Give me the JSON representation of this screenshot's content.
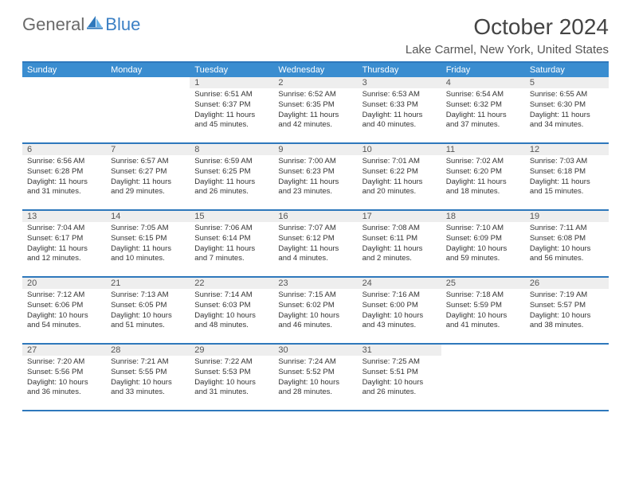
{
  "logo": {
    "text_general": "General",
    "text_blue": "Blue"
  },
  "header": {
    "month_title": "October 2024",
    "location": "Lake Carmel, New York, United States"
  },
  "colors": {
    "header_bg": "#3a8dd0",
    "header_text": "#ffffff",
    "border": "#2e78bc",
    "daynum_bg": "#eeeeee",
    "body_text": "#333333"
  },
  "day_names": [
    "Sunday",
    "Monday",
    "Tuesday",
    "Wednesday",
    "Thursday",
    "Friday",
    "Saturday"
  ],
  "weeks": [
    [
      {
        "empty": true
      },
      {
        "empty": true
      },
      {
        "daynum": "1",
        "sunrise": "Sunrise: 6:51 AM",
        "sunset": "Sunset: 6:37 PM",
        "daylight": "Daylight: 11 hours and 45 minutes."
      },
      {
        "daynum": "2",
        "sunrise": "Sunrise: 6:52 AM",
        "sunset": "Sunset: 6:35 PM",
        "daylight": "Daylight: 11 hours and 42 minutes."
      },
      {
        "daynum": "3",
        "sunrise": "Sunrise: 6:53 AM",
        "sunset": "Sunset: 6:33 PM",
        "daylight": "Daylight: 11 hours and 40 minutes."
      },
      {
        "daynum": "4",
        "sunrise": "Sunrise: 6:54 AM",
        "sunset": "Sunset: 6:32 PM",
        "daylight": "Daylight: 11 hours and 37 minutes."
      },
      {
        "daynum": "5",
        "sunrise": "Sunrise: 6:55 AM",
        "sunset": "Sunset: 6:30 PM",
        "daylight": "Daylight: 11 hours and 34 minutes."
      }
    ],
    [
      {
        "daynum": "6",
        "sunrise": "Sunrise: 6:56 AM",
        "sunset": "Sunset: 6:28 PM",
        "daylight": "Daylight: 11 hours and 31 minutes."
      },
      {
        "daynum": "7",
        "sunrise": "Sunrise: 6:57 AM",
        "sunset": "Sunset: 6:27 PM",
        "daylight": "Daylight: 11 hours and 29 minutes."
      },
      {
        "daynum": "8",
        "sunrise": "Sunrise: 6:59 AM",
        "sunset": "Sunset: 6:25 PM",
        "daylight": "Daylight: 11 hours and 26 minutes."
      },
      {
        "daynum": "9",
        "sunrise": "Sunrise: 7:00 AM",
        "sunset": "Sunset: 6:23 PM",
        "daylight": "Daylight: 11 hours and 23 minutes."
      },
      {
        "daynum": "10",
        "sunrise": "Sunrise: 7:01 AM",
        "sunset": "Sunset: 6:22 PM",
        "daylight": "Daylight: 11 hours and 20 minutes."
      },
      {
        "daynum": "11",
        "sunrise": "Sunrise: 7:02 AM",
        "sunset": "Sunset: 6:20 PM",
        "daylight": "Daylight: 11 hours and 18 minutes."
      },
      {
        "daynum": "12",
        "sunrise": "Sunrise: 7:03 AM",
        "sunset": "Sunset: 6:18 PM",
        "daylight": "Daylight: 11 hours and 15 minutes."
      }
    ],
    [
      {
        "daynum": "13",
        "sunrise": "Sunrise: 7:04 AM",
        "sunset": "Sunset: 6:17 PM",
        "daylight": "Daylight: 11 hours and 12 minutes."
      },
      {
        "daynum": "14",
        "sunrise": "Sunrise: 7:05 AM",
        "sunset": "Sunset: 6:15 PM",
        "daylight": "Daylight: 11 hours and 10 minutes."
      },
      {
        "daynum": "15",
        "sunrise": "Sunrise: 7:06 AM",
        "sunset": "Sunset: 6:14 PM",
        "daylight": "Daylight: 11 hours and 7 minutes."
      },
      {
        "daynum": "16",
        "sunrise": "Sunrise: 7:07 AM",
        "sunset": "Sunset: 6:12 PM",
        "daylight": "Daylight: 11 hours and 4 minutes."
      },
      {
        "daynum": "17",
        "sunrise": "Sunrise: 7:08 AM",
        "sunset": "Sunset: 6:11 PM",
        "daylight": "Daylight: 11 hours and 2 minutes."
      },
      {
        "daynum": "18",
        "sunrise": "Sunrise: 7:10 AM",
        "sunset": "Sunset: 6:09 PM",
        "daylight": "Daylight: 10 hours and 59 minutes."
      },
      {
        "daynum": "19",
        "sunrise": "Sunrise: 7:11 AM",
        "sunset": "Sunset: 6:08 PM",
        "daylight": "Daylight: 10 hours and 56 minutes."
      }
    ],
    [
      {
        "daynum": "20",
        "sunrise": "Sunrise: 7:12 AM",
        "sunset": "Sunset: 6:06 PM",
        "daylight": "Daylight: 10 hours and 54 minutes."
      },
      {
        "daynum": "21",
        "sunrise": "Sunrise: 7:13 AM",
        "sunset": "Sunset: 6:05 PM",
        "daylight": "Daylight: 10 hours and 51 minutes."
      },
      {
        "daynum": "22",
        "sunrise": "Sunrise: 7:14 AM",
        "sunset": "Sunset: 6:03 PM",
        "daylight": "Daylight: 10 hours and 48 minutes."
      },
      {
        "daynum": "23",
        "sunrise": "Sunrise: 7:15 AM",
        "sunset": "Sunset: 6:02 PM",
        "daylight": "Daylight: 10 hours and 46 minutes."
      },
      {
        "daynum": "24",
        "sunrise": "Sunrise: 7:16 AM",
        "sunset": "Sunset: 6:00 PM",
        "daylight": "Daylight: 10 hours and 43 minutes."
      },
      {
        "daynum": "25",
        "sunrise": "Sunrise: 7:18 AM",
        "sunset": "Sunset: 5:59 PM",
        "daylight": "Daylight: 10 hours and 41 minutes."
      },
      {
        "daynum": "26",
        "sunrise": "Sunrise: 7:19 AM",
        "sunset": "Sunset: 5:57 PM",
        "daylight": "Daylight: 10 hours and 38 minutes."
      }
    ],
    [
      {
        "daynum": "27",
        "sunrise": "Sunrise: 7:20 AM",
        "sunset": "Sunset: 5:56 PM",
        "daylight": "Daylight: 10 hours and 36 minutes."
      },
      {
        "daynum": "28",
        "sunrise": "Sunrise: 7:21 AM",
        "sunset": "Sunset: 5:55 PM",
        "daylight": "Daylight: 10 hours and 33 minutes."
      },
      {
        "daynum": "29",
        "sunrise": "Sunrise: 7:22 AM",
        "sunset": "Sunset: 5:53 PM",
        "daylight": "Daylight: 10 hours and 31 minutes."
      },
      {
        "daynum": "30",
        "sunrise": "Sunrise: 7:24 AM",
        "sunset": "Sunset: 5:52 PM",
        "daylight": "Daylight: 10 hours and 28 minutes."
      },
      {
        "daynum": "31",
        "sunrise": "Sunrise: 7:25 AM",
        "sunset": "Sunset: 5:51 PM",
        "daylight": "Daylight: 10 hours and 26 minutes."
      },
      {
        "empty": true
      },
      {
        "empty": true
      }
    ]
  ]
}
